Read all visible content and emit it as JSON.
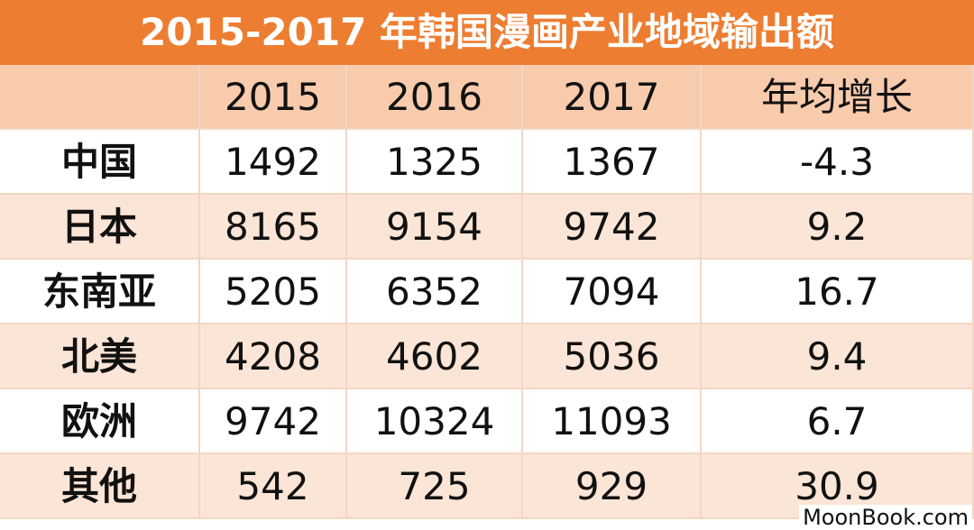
{
  "header": {
    "title": "2015-2017 年韩国漫画产业地域输出额"
  },
  "table": {
    "columns": [
      "",
      "2015",
      "2016",
      "2017",
      "年均增长"
    ],
    "rows": [
      [
        "中国",
        "1492",
        "1325",
        "1367",
        "-4.3"
      ],
      [
        "日本",
        "8165",
        "9154",
        "9742",
        "9.2"
      ],
      [
        "东南亚",
        "5205",
        "6352",
        "7094",
        "16.7"
      ],
      [
        "北美",
        "4208",
        "4602",
        "5036",
        "9.4"
      ],
      [
        "欧洲",
        "9742",
        "10324",
        "11093",
        "6.7"
      ],
      [
        "其他",
        "542",
        "725",
        "929",
        "30.9"
      ]
    ]
  },
  "watermark": "MoonBook.com"
}
